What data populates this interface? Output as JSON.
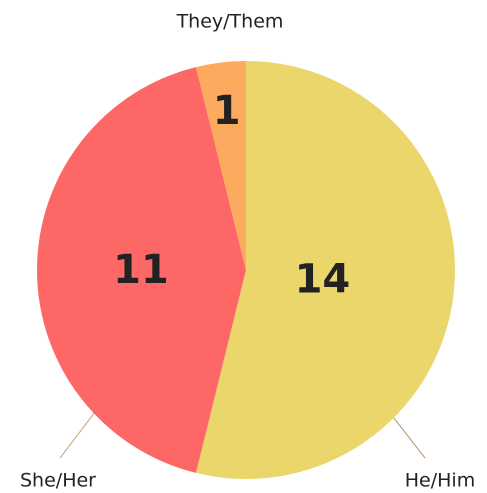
{
  "chart_data": {
    "type": "pie",
    "categories": [
      "He/Him",
      "She/Her",
      "They/Them"
    ],
    "values": [
      14,
      11,
      1
    ],
    "colors": [
      "#ebd66b",
      "#fd6766",
      "#fbaa5e"
    ]
  }
}
